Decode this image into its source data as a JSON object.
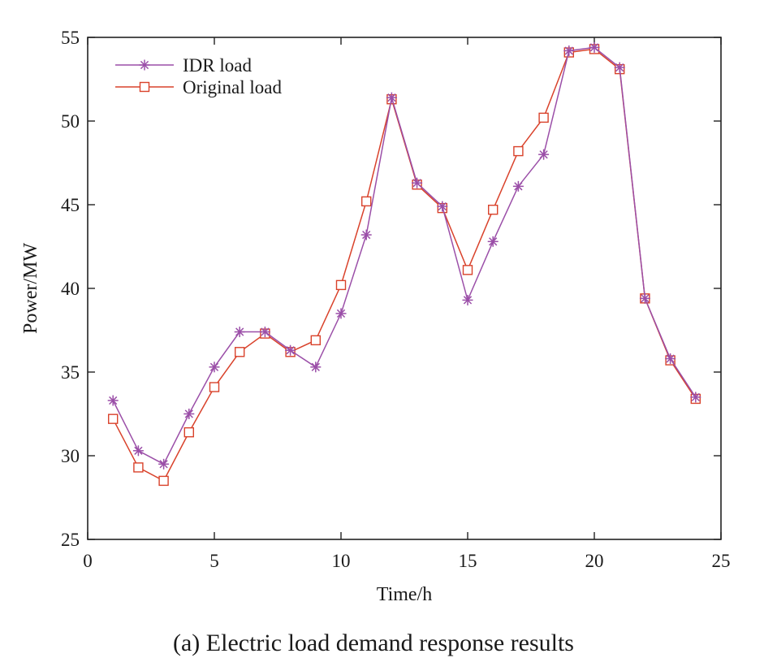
{
  "chart_data": {
    "type": "line",
    "caption": "(a) Electric load demand response results",
    "xlabel": "Time/h",
    "ylabel": "Power/MW",
    "xlim": [
      0,
      25
    ],
    "ylim": [
      25,
      55
    ],
    "xticks": [
      0,
      5,
      10,
      15,
      20,
      25
    ],
    "yticks": [
      25,
      30,
      35,
      40,
      45,
      50,
      55
    ],
    "grid": false,
    "legend_position": "top-left",
    "x": [
      1,
      2,
      3,
      4,
      5,
      6,
      7,
      8,
      9,
      10,
      11,
      12,
      13,
      14,
      15,
      16,
      17,
      18,
      19,
      20,
      21,
      22,
      23,
      24
    ],
    "series": [
      {
        "name": "IDR load",
        "marker": "asterisk",
        "color": "#9B4FA8",
        "values": [
          33.3,
          30.3,
          29.5,
          32.5,
          35.3,
          37.4,
          37.4,
          36.3,
          35.3,
          38.5,
          43.2,
          51.4,
          46.3,
          44.9,
          39.3,
          42.8,
          46.1,
          48.0,
          54.2,
          54.4,
          53.2,
          39.4,
          35.8,
          33.5
        ]
      },
      {
        "name": "Original load",
        "marker": "square",
        "color": "#D9422B",
        "values": [
          32.2,
          29.3,
          28.5,
          31.4,
          34.1,
          36.2,
          37.3,
          36.2,
          36.9,
          40.2,
          45.2,
          51.3,
          46.2,
          44.8,
          41.1,
          44.7,
          48.2,
          50.2,
          54.1,
          54.3,
          53.1,
          39.4,
          35.7,
          33.4
        ]
      }
    ]
  }
}
